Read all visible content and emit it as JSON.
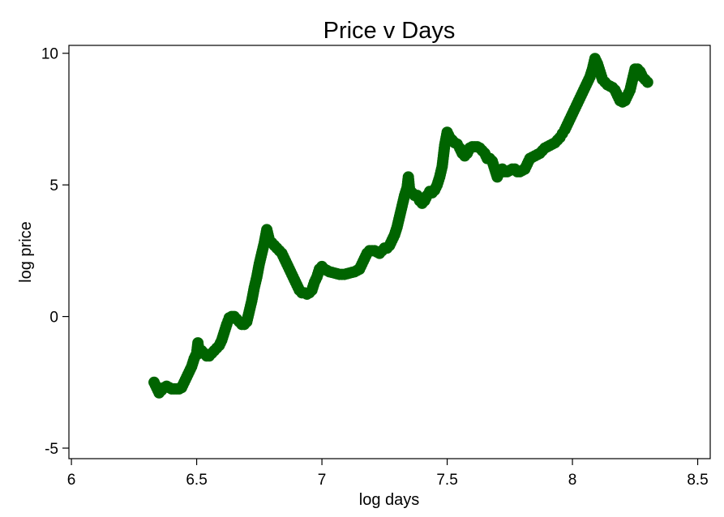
{
  "chart_data": {
    "type": "scatter",
    "title": "Price v Days",
    "xlabel": "log days",
    "ylabel": "log price",
    "xlim": [
      5.99,
      8.55
    ],
    "ylim": [
      -5.4,
      10.3
    ],
    "xticks": [
      6,
      6.5,
      7,
      7.5,
      8,
      8.5
    ],
    "xtick_labels": [
      "6",
      "6.5",
      "7",
      "7.5",
      "8",
      "8.5"
    ],
    "yticks": [
      10,
      5,
      0,
      -5
    ],
    "ytick_labels": [
      "10",
      "5",
      "0",
      "-5"
    ],
    "grid": false,
    "legend": "none",
    "marker_color": "#006400",
    "points": [
      [
        6.33,
        -2.5
      ],
      [
        6.34,
        -2.7
      ],
      [
        6.35,
        -2.9
      ],
      [
        6.36,
        -2.8
      ],
      [
        6.37,
        -2.7
      ],
      [
        6.38,
        -2.65
      ],
      [
        6.39,
        -2.7
      ],
      [
        6.4,
        -2.75
      ],
      [
        6.41,
        -2.75
      ],
      [
        6.42,
        -2.75
      ],
      [
        6.43,
        -2.75
      ],
      [
        6.44,
        -2.7
      ],
      [
        6.45,
        -2.5
      ],
      [
        6.46,
        -2.3
      ],
      [
        6.47,
        -2.1
      ],
      [
        6.48,
        -1.9
      ],
      [
        6.49,
        -1.6
      ],
      [
        6.5,
        -1.4
      ],
      [
        6.505,
        -1.0
      ],
      [
        6.51,
        -1.4
      ],
      [
        6.52,
        -1.3
      ],
      [
        6.53,
        -1.4
      ],
      [
        6.54,
        -1.5
      ],
      [
        6.55,
        -1.5
      ],
      [
        6.56,
        -1.4
      ],
      [
        6.57,
        -1.3
      ],
      [
        6.58,
        -1.2
      ],
      [
        6.59,
        -1.1
      ],
      [
        6.6,
        -0.9
      ],
      [
        6.61,
        -0.6
      ],
      [
        6.62,
        -0.3
      ],
      [
        6.63,
        -0.05
      ],
      [
        6.64,
        0.0
      ],
      [
        6.65,
        0.0
      ],
      [
        6.66,
        -0.1
      ],
      [
        6.67,
        -0.2
      ],
      [
        6.68,
        -0.3
      ],
      [
        6.69,
        -0.3
      ],
      [
        6.7,
        -0.2
      ],
      [
        6.71,
        0.2
      ],
      [
        6.72,
        0.6
      ],
      [
        6.73,
        1.1
      ],
      [
        6.74,
        1.5
      ],
      [
        6.75,
        2.0
      ],
      [
        6.76,
        2.4
      ],
      [
        6.77,
        2.8
      ],
      [
        6.78,
        3.3
      ],
      [
        6.79,
        2.9
      ],
      [
        6.8,
        2.8
      ],
      [
        6.81,
        2.7
      ],
      [
        6.82,
        2.6
      ],
      [
        6.83,
        2.5
      ],
      [
        6.84,
        2.4
      ],
      [
        6.85,
        2.2
      ],
      [
        6.86,
        2.0
      ],
      [
        6.87,
        1.8
      ],
      [
        6.88,
        1.6
      ],
      [
        6.89,
        1.4
      ],
      [
        6.9,
        1.2
      ],
      [
        6.91,
        1.0
      ],
      [
        6.92,
        0.9
      ],
      [
        6.93,
        0.9
      ],
      [
        6.94,
        0.85
      ],
      [
        6.95,
        0.9
      ],
      [
        6.96,
        1.0
      ],
      [
        6.97,
        1.3
      ],
      [
        6.98,
        1.5
      ],
      [
        6.99,
        1.8
      ],
      [
        7.0,
        1.9
      ],
      [
        7.01,
        1.8
      ],
      [
        7.03,
        1.7
      ],
      [
        7.05,
        1.65
      ],
      [
        7.07,
        1.6
      ],
      [
        7.09,
        1.6
      ],
      [
        7.11,
        1.65
      ],
      [
        7.13,
        1.7
      ],
      [
        7.15,
        1.8
      ],
      [
        7.16,
        2.0
      ],
      [
        7.17,
        2.2
      ],
      [
        7.18,
        2.4
      ],
      [
        7.19,
        2.5
      ],
      [
        7.2,
        2.5
      ],
      [
        7.21,
        2.5
      ],
      [
        7.22,
        2.45
      ],
      [
        7.23,
        2.4
      ],
      [
        7.24,
        2.5
      ],
      [
        7.25,
        2.6
      ],
      [
        7.26,
        2.6
      ],
      [
        7.27,
        2.7
      ],
      [
        7.28,
        2.9
      ],
      [
        7.29,
        3.1
      ],
      [
        7.3,
        3.4
      ],
      [
        7.31,
        3.8
      ],
      [
        7.32,
        4.2
      ],
      [
        7.33,
        4.6
      ],
      [
        7.34,
        4.9
      ],
      [
        7.345,
        5.3
      ],
      [
        7.35,
        4.8
      ],
      [
        7.36,
        4.7
      ],
      [
        7.37,
        4.6
      ],
      [
        7.38,
        4.6
      ],
      [
        7.39,
        4.4
      ],
      [
        7.4,
        4.3
      ],
      [
        7.41,
        4.4
      ],
      [
        7.42,
        4.6
      ],
      [
        7.43,
        4.75
      ],
      [
        7.44,
        4.7
      ],
      [
        7.45,
        4.8
      ],
      [
        7.46,
        5.0
      ],
      [
        7.47,
        5.3
      ],
      [
        7.48,
        5.7
      ],
      [
        7.49,
        6.5
      ],
      [
        7.5,
        7.0
      ],
      [
        7.51,
        6.8
      ],
      [
        7.52,
        6.7
      ],
      [
        7.53,
        6.6
      ],
      [
        7.54,
        6.55
      ],
      [
        7.55,
        6.4
      ],
      [
        7.56,
        6.2
      ],
      [
        7.57,
        6.1
      ],
      [
        7.58,
        6.2
      ],
      [
        7.59,
        6.4
      ],
      [
        7.6,
        6.45
      ],
      [
        7.61,
        6.45
      ],
      [
        7.62,
        6.45
      ],
      [
        7.63,
        6.4
      ],
      [
        7.64,
        6.3
      ],
      [
        7.65,
        6.2
      ],
      [
        7.66,
        6.0
      ],
      [
        7.67,
        6.0
      ],
      [
        7.68,
        5.9
      ],
      [
        7.69,
        5.6
      ],
      [
        7.7,
        5.3
      ],
      [
        7.71,
        5.5
      ],
      [
        7.72,
        5.6
      ],
      [
        7.73,
        5.5
      ],
      [
        7.74,
        5.5
      ],
      [
        7.75,
        5.55
      ],
      [
        7.76,
        5.6
      ],
      [
        7.77,
        5.6
      ],
      [
        7.78,
        5.5
      ],
      [
        7.79,
        5.5
      ],
      [
        7.8,
        5.55
      ],
      [
        7.81,
        5.6
      ],
      [
        7.82,
        5.8
      ],
      [
        7.83,
        6.0
      ],
      [
        7.84,
        6.05
      ],
      [
        7.85,
        6.1
      ],
      [
        7.86,
        6.15
      ],
      [
        7.87,
        6.2
      ],
      [
        7.88,
        6.3
      ],
      [
        7.89,
        6.4
      ],
      [
        7.9,
        6.45
      ],
      [
        7.91,
        6.5
      ],
      [
        7.92,
        6.55
      ],
      [
        7.93,
        6.6
      ],
      [
        7.94,
        6.7
      ],
      [
        7.95,
        6.8
      ],
      [
        7.96,
        6.95
      ],
      [
        7.97,
        7.1
      ],
      [
        7.98,
        7.3
      ],
      [
        7.99,
        7.5
      ],
      [
        8.0,
        7.7
      ],
      [
        8.01,
        7.9
      ],
      [
        8.02,
        8.1
      ],
      [
        8.03,
        8.3
      ],
      [
        8.04,
        8.5
      ],
      [
        8.05,
        8.7
      ],
      [
        8.06,
        8.9
      ],
      [
        8.07,
        9.1
      ],
      [
        8.08,
        9.4
      ],
      [
        8.09,
        9.8
      ],
      [
        8.1,
        9.6
      ],
      [
        8.11,
        9.3
      ],
      [
        8.12,
        9.0
      ],
      [
        8.13,
        8.9
      ],
      [
        8.14,
        8.8
      ],
      [
        8.15,
        8.75
      ],
      [
        8.16,
        8.7
      ],
      [
        8.17,
        8.6
      ],
      [
        8.18,
        8.4
      ],
      [
        8.19,
        8.2
      ],
      [
        8.2,
        8.15
      ],
      [
        8.21,
        8.2
      ],
      [
        8.22,
        8.4
      ],
      [
        8.23,
        8.6
      ],
      [
        8.24,
        9.0
      ],
      [
        8.25,
        9.4
      ],
      [
        8.26,
        9.4
      ],
      [
        8.27,
        9.3
      ],
      [
        8.28,
        9.1
      ],
      [
        8.29,
        9.0
      ],
      [
        8.3,
        8.9
      ]
    ]
  }
}
